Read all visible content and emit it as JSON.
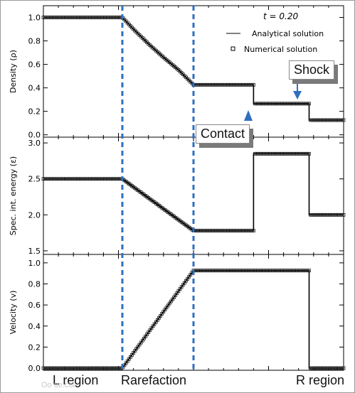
{
  "title_annotation": "t = 0.20",
  "legend": {
    "analytical_label": "Analytical solution",
    "numerical_label": "Numerical solution",
    "placement": "top-right"
  },
  "callouts": {
    "shock": "Shock",
    "contact": "Contact"
  },
  "region_labels": {
    "left": "L region",
    "rarefaction": "Rarefaction",
    "right": "R region"
  },
  "watermark": "Oo ue.coi",
  "colors": {
    "boundary_lines": "#2f6fc0",
    "arrow": "#2f6fc0",
    "curve": "#000000"
  },
  "chart_data": [
    {
      "type": "line",
      "name": "density",
      "ylabel": "Density (ρ)",
      "ylim": [
        -0.02,
        1.1
      ],
      "yticks": [
        "0.0",
        "0.2",
        "0.4",
        "0.6",
        "0.8",
        "1.0"
      ],
      "xlim": [
        0,
        1
      ],
      "grid": false,
      "x": [
        0.0,
        0.2629,
        0.3,
        0.35,
        0.4,
        0.45,
        0.5,
        0.5,
        0.7,
        0.7,
        0.885,
        0.885,
        1.0
      ],
      "y": [
        1.0,
        1.0,
        0.9,
        0.775,
        0.66,
        0.553,
        0.4263,
        0.4263,
        0.4263,
        0.2656,
        0.2656,
        0.125,
        0.125
      ]
    },
    {
      "type": "line",
      "name": "specific internal energy",
      "ylabel": "Spec. int. energy (ε)",
      "ylim": [
        1.45,
        3.08
      ],
      "yticks": [
        "1.5",
        "2.0",
        "2.5",
        "3.0"
      ],
      "xlim": [
        0,
        1
      ],
      "grid": false,
      "x": [
        0.0,
        0.2629,
        0.5,
        0.5,
        0.7,
        0.7,
        0.885,
        0.885,
        1.0
      ],
      "y": [
        2.5,
        2.5,
        1.78,
        1.78,
        1.78,
        2.85,
        2.85,
        2.0,
        2.0
      ]
    },
    {
      "type": "line",
      "name": "velocity",
      "ylabel": "Velocity (v)",
      "ylim": [
        -0.02,
        1.08
      ],
      "yticks": [
        "0.0",
        "0.2",
        "0.4",
        "0.6",
        "0.8",
        "1.0"
      ],
      "xlim": [
        0,
        1
      ],
      "grid": false,
      "x": [
        0.0,
        0.2629,
        0.5,
        0.5,
        0.7,
        0.7,
        0.885,
        0.885,
        1.0
      ],
      "y": [
        0.0,
        0.0,
        0.927,
        0.927,
        0.927,
        0.927,
        0.927,
        0.0,
        0.0
      ]
    }
  ],
  "boundaries_x": [
    0.2629,
    0.5
  ]
}
